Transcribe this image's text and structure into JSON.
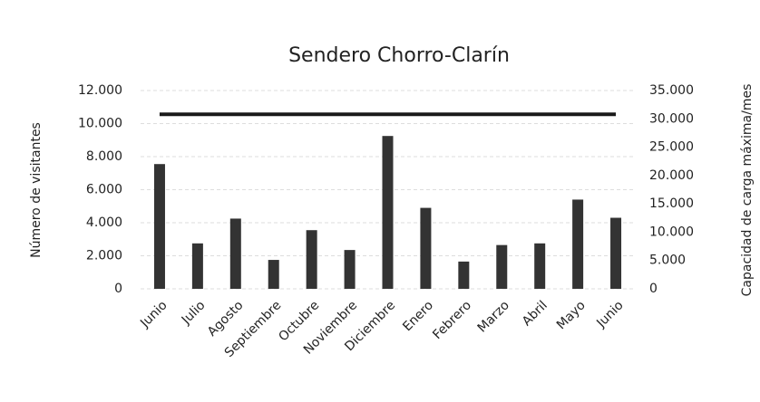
{
  "chart_data": {
    "type": "bar_line",
    "title": "Sendero Chorro-Clarín",
    "y_label": "Número de visitantes",
    "y2_label": "Capacidad de carga máxima/mes",
    "categories": [
      "Junio",
      "Julio",
      "Agosto",
      "Septiembre",
      "Octubre",
      "Noviembre",
      "Diciembre",
      "Enero",
      "Febrero",
      "Marzo",
      "Abril",
      "Mayo",
      "Junio"
    ],
    "series": [
      {
        "type": "bar",
        "color": "#333333",
        "values": [
          7550,
          2750,
          4250,
          1750,
          3550,
          2350,
          9250,
          4900,
          1650,
          2650,
          2750,
          5400,
          4300
        ]
      },
      {
        "type": "line",
        "color": "#1a1a1a",
        "axis": "y2",
        "values": [
          30800,
          30800,
          30800,
          30800,
          30800,
          30800,
          30800,
          30800,
          30800,
          30800,
          30800,
          30800,
          30800
        ]
      }
    ],
    "ylim": [
      0,
      12000
    ],
    "yticks": [
      0,
      {
        "value": 2000,
        "label": "2.000"
      },
      {
        "value": 4000,
        "label": "4.000"
      },
      {
        "value": 6000,
        "label": "6.000"
      },
      {
        "value": 8000,
        "label": "8.000"
      },
      {
        "value": 10000,
        "label": "10.000"
      },
      {
        "value": 12000,
        "label": "12.000"
      }
    ],
    "y2lim": [
      0,
      35000
    ],
    "y2ticks": [
      0,
      {
        "value": 5000,
        "label": "5.000"
      },
      {
        "value": 10000,
        "label": "10.000"
      },
      {
        "value": 15000,
        "label": "15.000"
      },
      {
        "value": 20000,
        "label": "20.000"
      },
      {
        "value": 25000,
        "label": "25.000"
      },
      {
        "value": 30000,
        "label": "30.000"
      },
      {
        "value": 35000,
        "label": "35.000"
      }
    ],
    "grid": true
  }
}
